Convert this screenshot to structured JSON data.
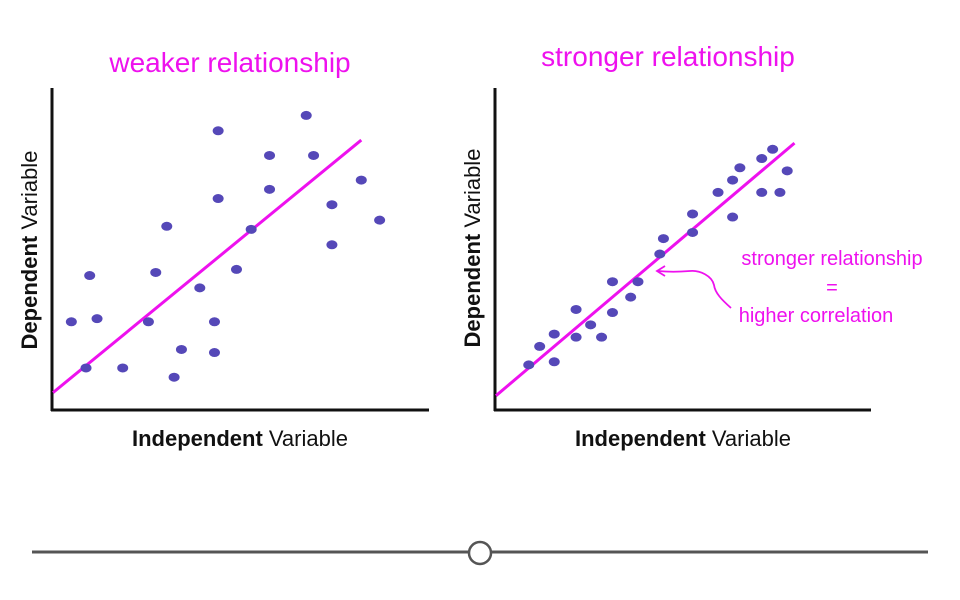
{
  "colors": {
    "accent": "#ee11ee",
    "point": "#5548b8",
    "axis": "#111111",
    "slider": "#555555"
  },
  "chart_data": [
    {
      "type": "scatter",
      "title": "weaker relationship",
      "xlabel_bold": "Independent",
      "xlabel_rest": " Variable",
      "ylabel_bold": "Dependent",
      "ylabel_rest": " Variable",
      "xlim": [
        0,
        10
      ],
      "ylim": [
        0,
        10
      ],
      "grid": false,
      "trend_line": {
        "x": [
          0,
          8.4
        ],
        "y": [
          0.5,
          8.7
        ]
      },
      "points": [
        {
          "x": 0.5,
          "y": 2.8
        },
        {
          "x": 0.9,
          "y": 1.3
        },
        {
          "x": 1.0,
          "y": 4.3
        },
        {
          "x": 1.2,
          "y": 2.9
        },
        {
          "x": 1.9,
          "y": 1.3
        },
        {
          "x": 2.6,
          "y": 2.8
        },
        {
          "x": 2.8,
          "y": 4.4
        },
        {
          "x": 3.1,
          "y": 5.9
        },
        {
          "x": 3.3,
          "y": 1.0
        },
        {
          "x": 3.5,
          "y": 1.9
        },
        {
          "x": 4.0,
          "y": 3.9
        },
        {
          "x": 4.4,
          "y": 1.8
        },
        {
          "x": 4.4,
          "y": 2.8
        },
        {
          "x": 4.5,
          "y": 6.8
        },
        {
          "x": 4.5,
          "y": 9.0
        },
        {
          "x": 5.0,
          "y": 4.5
        },
        {
          "x": 5.4,
          "y": 5.8
        },
        {
          "x": 5.9,
          "y": 7.1
        },
        {
          "x": 5.9,
          "y": 8.2
        },
        {
          "x": 6.9,
          "y": 9.5
        },
        {
          "x": 7.1,
          "y": 8.2
        },
        {
          "x": 7.6,
          "y": 5.3
        },
        {
          "x": 7.6,
          "y": 6.6
        },
        {
          "x": 8.4,
          "y": 7.4
        },
        {
          "x": 8.9,
          "y": 6.1
        }
      ]
    },
    {
      "type": "scatter",
      "title": "stronger relationship",
      "xlabel_bold": "Independent",
      "xlabel_rest": " Variable",
      "ylabel_bold": "Dependent",
      "ylabel_rest": " Variable",
      "xlim": [
        0,
        10
      ],
      "ylim": [
        0,
        10
      ],
      "grid": false,
      "trend_line": {
        "x": [
          0,
          8.2
        ],
        "y": [
          0.4,
          8.6
        ]
      },
      "points": [
        {
          "x": 0.9,
          "y": 1.4
        },
        {
          "x": 1.2,
          "y": 2.0
        },
        {
          "x": 1.6,
          "y": 1.5
        },
        {
          "x": 1.6,
          "y": 2.4
        },
        {
          "x": 2.2,
          "y": 2.3
        },
        {
          "x": 2.2,
          "y": 3.2
        },
        {
          "x": 2.6,
          "y": 2.7
        },
        {
          "x": 2.9,
          "y": 2.3
        },
        {
          "x": 3.2,
          "y": 3.1
        },
        {
          "x": 3.2,
          "y": 4.1
        },
        {
          "x": 3.7,
          "y": 3.6
        },
        {
          "x": 3.9,
          "y": 4.1
        },
        {
          "x": 4.5,
          "y": 5.0
        },
        {
          "x": 4.6,
          "y": 5.5
        },
        {
          "x": 5.4,
          "y": 5.7
        },
        {
          "x": 5.4,
          "y": 6.3
        },
        {
          "x": 6.1,
          "y": 7.0
        },
        {
          "x": 6.5,
          "y": 6.2
        },
        {
          "x": 6.5,
          "y": 7.4
        },
        {
          "x": 6.7,
          "y": 7.8
        },
        {
          "x": 7.3,
          "y": 7.0
        },
        {
          "x": 7.3,
          "y": 8.1
        },
        {
          "x": 7.6,
          "y": 8.4
        },
        {
          "x": 7.8,
          "y": 7.0
        },
        {
          "x": 8.0,
          "y": 7.7
        }
      ],
      "annotation": {
        "line1": "stronger relationship",
        "line2": "=",
        "line3": "higher correlation"
      }
    }
  ],
  "slider": {
    "position": 0.5
  }
}
